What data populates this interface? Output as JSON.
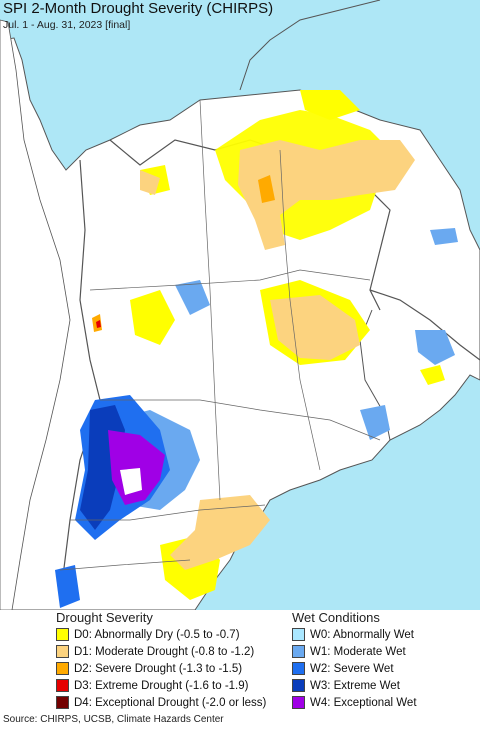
{
  "title": "SPI 2-Month Drought Severity (CHIRPS)",
  "subtitle": "Jul. 1 - Aug. 31, 2023 [final]",
  "legend": {
    "drought_heading": "Drought Severity",
    "wet_heading": "Wet Conditions",
    "drought_items": [
      {
        "label": "D0: Abnormally Dry (-0.5 to -0.7)",
        "color": "#ffff00"
      },
      {
        "label": "D1: Moderate Drought (-0.8 to -1.2)",
        "color": "#fcd37f"
      },
      {
        "label": "D2: Severe Drought (-1.3 to -1.5)",
        "color": "#ffaa00"
      },
      {
        "label": "D3: Extreme Drought (-1.6 to -1.9)",
        "color": "#e60000"
      },
      {
        "label": "D4: Exceptional Drought (-2.0 or less)",
        "color": "#730000"
      }
    ],
    "wet_items": [
      {
        "label": "W0: Abnormally Wet",
        "color": "#aae7ff"
      },
      {
        "label": "W1: Moderate Wet",
        "color": "#6aa9f0"
      },
      {
        "label": "W2: Severe Wet",
        "color": "#1f6ff0"
      },
      {
        "label": "W3: Extreme Wet",
        "color": "#0a3dbb"
      },
      {
        "label": "W4: Exceptional Wet",
        "color": "#a000e6"
      }
    ]
  },
  "source": "Source: CHIRPS, UCSB, Climate Hazards Center",
  "colors": {
    "ocean": "#aee7f6",
    "neighbor_land": "#ffffff",
    "boundary": "#555555"
  }
}
